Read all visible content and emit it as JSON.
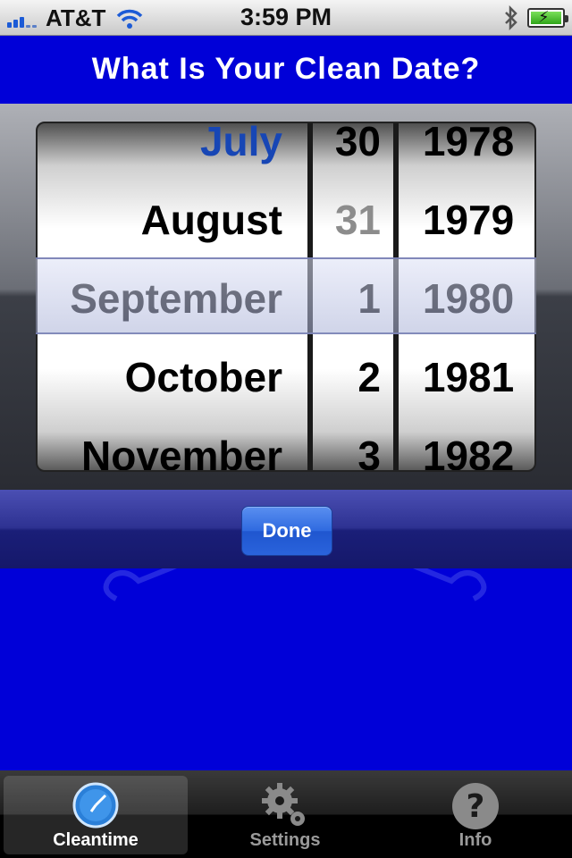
{
  "status_bar": {
    "carrier": "AT&T",
    "time": "3:59 PM",
    "icons": [
      "signal-icon",
      "wifi-icon",
      "bluetooth-icon",
      "battery-icon"
    ]
  },
  "header": {
    "title": "What Is Your Clean Date?"
  },
  "picker": {
    "months": [
      "July",
      "August",
      "September",
      "October",
      "November"
    ],
    "days": [
      "30",
      "31",
      "1",
      "2",
      "3"
    ],
    "years": [
      "1978",
      "1979",
      "1980",
      "1981",
      "1982"
    ],
    "selected": {
      "month": "September",
      "day": "1",
      "year": "1980"
    }
  },
  "toolbar": {
    "done_label": "Done"
  },
  "tab_bar": {
    "tabs": [
      {
        "label": "Cleantime",
        "icon": "clock-icon",
        "selected": true
      },
      {
        "label": "Settings",
        "icon": "gear-icon",
        "selected": false
      },
      {
        "label": "Info",
        "icon": "question-icon",
        "selected": false
      }
    ]
  },
  "colors": {
    "background": "#0000d8",
    "highlight_month": "#1746b5",
    "done_button": "#2f6ae0"
  }
}
